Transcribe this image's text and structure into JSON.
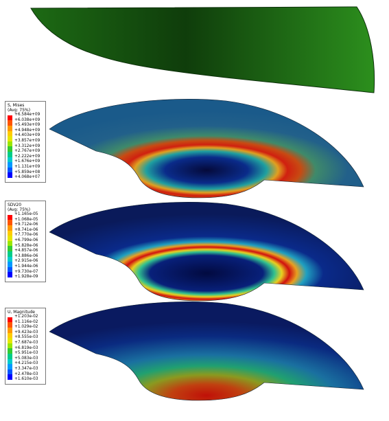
{
  "legends": [
    {
      "title": "S, Mises",
      "subtitle": "(Avg: 75%)",
      "values": [
        "+6.584e+09",
        "+6.038e+09",
        "+5.493e+09",
        "+4.948e+09",
        "+4.403e+09",
        "+3.857e+09",
        "+3.312e+09",
        "+2.767e+09",
        "+2.222e+09",
        "+1.676e+09",
        "+1.131e+09",
        "+5.859e+08",
        "+4.068e+07"
      ]
    },
    {
      "title": "SDV20",
      "subtitle": "(Avg: 75%)",
      "values": [
        "+1.165e-05",
        "+1.068e-05",
        "+9.712e-06",
        "+8.741e-06",
        "+7.770e-06",
        "+6.799e-06",
        "+5.828e-06",
        "+4.857e-06",
        "+3.886e-06",
        "+2.915e-06",
        "+1.944e-06",
        "+9.730e-07",
        "+1.928e-09"
      ]
    },
    {
      "title": "U, Magnitude",
      "values": [
        "+1.203e-02",
        "+1.116e-02",
        "+1.029e-02",
        "+9.423e-03",
        "+8.555e-03",
        "+7.687e-03",
        "+6.819e-03",
        "+5.951e-03",
        "+5.083e-03",
        "+4.215e-03",
        "+3.347e-03",
        "+2.478e-03",
        "+1.610e-03"
      ]
    }
  ]
}
